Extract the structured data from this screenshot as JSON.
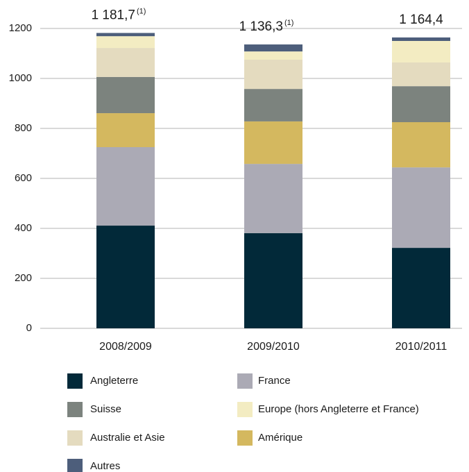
{
  "chart_data": {
    "type": "stacked_bar",
    "categories": [
      "2008/2009",
      "2009/2010",
      "2010/2011"
    ],
    "series": [
      {
        "name": "Angleterre",
        "color": "#022939",
        "values": [
          411,
          381,
          322
        ]
      },
      {
        "name": "France",
        "color": "#abaab5",
        "values": [
          314,
          277,
          322
        ]
      },
      {
        "name": "Amérique",
        "color": "#d4b85f",
        "values": [
          136,
          170,
          181
        ]
      },
      {
        "name": "Suisse",
        "color": "#7c837e",
        "values": [
          145,
          130,
          144
        ]
      },
      {
        "name": "Australie et Asie",
        "color": "#e4dbbf",
        "values": [
          116,
          117,
          95
        ]
      },
      {
        "name": "Europe (hors Angleterre et France)",
        "color": "#f3ecc2",
        "values": [
          47,
          33,
          86
        ]
      },
      {
        "name": "Autres",
        "color": "#4d5e7b",
        "values": [
          13,
          28,
          14
        ]
      }
    ],
    "totals": [
      {
        "value": 1181.7,
        "label": "1 181,7",
        "note": "(1)"
      },
      {
        "value": 1136.3,
        "label": "1 136,3",
        "note": "(1)"
      },
      {
        "value": 1164.4,
        "label": "1 164,4"
      }
    ],
    "ylim": [
      0,
      1200
    ],
    "yticks": [
      0,
      200,
      400,
      600,
      800,
      1000,
      1200
    ],
    "grid": true,
    "legend_order": [
      0,
      3,
      4,
      6,
      1,
      5,
      2
    ]
  }
}
